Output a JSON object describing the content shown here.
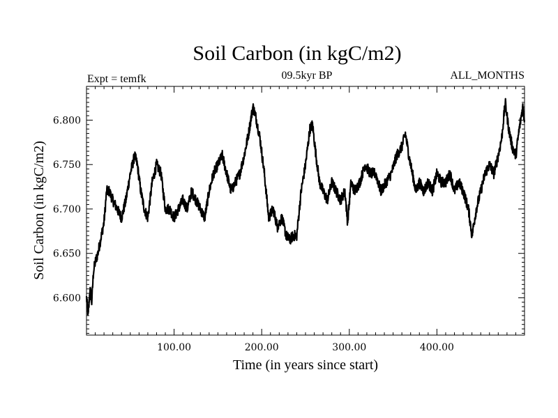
{
  "chart_data": {
    "type": "line",
    "title": "Soil Carbon (in kgC/m2)",
    "subtitle_left": "Expt = temfk",
    "subtitle_center": "09.5kyr BP",
    "subtitle_right": "ALL_MONTHS",
    "xlabel": "Time (in years since start)",
    "ylabel": "Soil Carbon (in kgC/m2)",
    "xlim": [
      0,
      500
    ],
    "ylim": [
      6.558,
      6.838
    ],
    "x_ticks": [
      {
        "value": 100,
        "label": "100.00"
      },
      {
        "value": 200,
        "label": "200.00"
      },
      {
        "value": 300,
        "label": "300.00"
      },
      {
        "value": 400,
        "label": "400.00"
      }
    ],
    "y_ticks": [
      {
        "value": 6.6,
        "label": "6.600"
      },
      {
        "value": 6.65,
        "label": "6.650"
      },
      {
        "value": 6.7,
        "label": "6.700"
      },
      {
        "value": 6.75,
        "label": "6.750"
      },
      {
        "value": 6.8,
        "label": "6.800"
      }
    ],
    "series": [
      {
        "name": "Soil Carbon",
        "color": "#000000",
        "x": [
          0,
          2,
          4,
          6,
          8,
          10,
          13,
          16,
          20,
          23,
          26,
          30,
          35,
          40,
          45,
          50,
          55,
          58,
          62,
          66,
          70,
          75,
          80,
          85,
          90,
          95,
          100,
          105,
          110,
          115,
          120,
          125,
          130,
          135,
          140,
          145,
          150,
          155,
          160,
          165,
          170,
          175,
          180,
          185,
          190,
          193,
          198,
          203,
          208,
          213,
          218,
          223,
          228,
          232,
          236,
          240,
          245,
          250,
          255,
          258,
          262,
          266,
          270,
          275,
          280,
          285,
          290,
          295,
          298,
          302,
          306,
          312,
          318,
          324,
          330,
          336,
          342,
          348,
          354,
          360,
          364,
          368,
          372,
          376,
          380,
          385,
          390,
          395,
          400,
          405,
          410,
          415,
          420,
          425,
          430,
          436,
          440,
          445,
          450,
          455,
          460,
          465,
          470,
          474,
          478,
          482,
          486,
          490,
          494,
          498,
          500
        ],
        "y": [
          6.6,
          6.58,
          6.61,
          6.595,
          6.63,
          6.64,
          6.65,
          6.665,
          6.685,
          6.72,
          6.72,
          6.71,
          6.7,
          6.69,
          6.71,
          6.74,
          6.76,
          6.75,
          6.72,
          6.7,
          6.69,
          6.73,
          6.75,
          6.74,
          6.7,
          6.7,
          6.69,
          6.7,
          6.71,
          6.7,
          6.72,
          6.71,
          6.7,
          6.69,
          6.72,
          6.74,
          6.75,
          6.76,
          6.74,
          6.72,
          6.73,
          6.74,
          6.76,
          6.785,
          6.815,
          6.805,
          6.78,
          6.74,
          6.69,
          6.7,
          6.68,
          6.69,
          6.67,
          6.665,
          6.67,
          6.67,
          6.72,
          6.75,
          6.79,
          6.795,
          6.76,
          6.73,
          6.72,
          6.71,
          6.73,
          6.72,
          6.71,
          6.72,
          6.685,
          6.73,
          6.72,
          6.73,
          6.75,
          6.74,
          6.74,
          6.72,
          6.73,
          6.74,
          6.76,
          6.77,
          6.785,
          6.76,
          6.74,
          6.72,
          6.73,
          6.72,
          6.73,
          6.72,
          6.74,
          6.73,
          6.73,
          6.74,
          6.72,
          6.73,
          6.72,
          6.7,
          6.67,
          6.7,
          6.72,
          6.74,
          6.75,
          6.74,
          6.76,
          6.78,
          6.82,
          6.79,
          6.77,
          6.76,
          6.79,
          6.815,
          6.8
        ]
      }
    ]
  }
}
